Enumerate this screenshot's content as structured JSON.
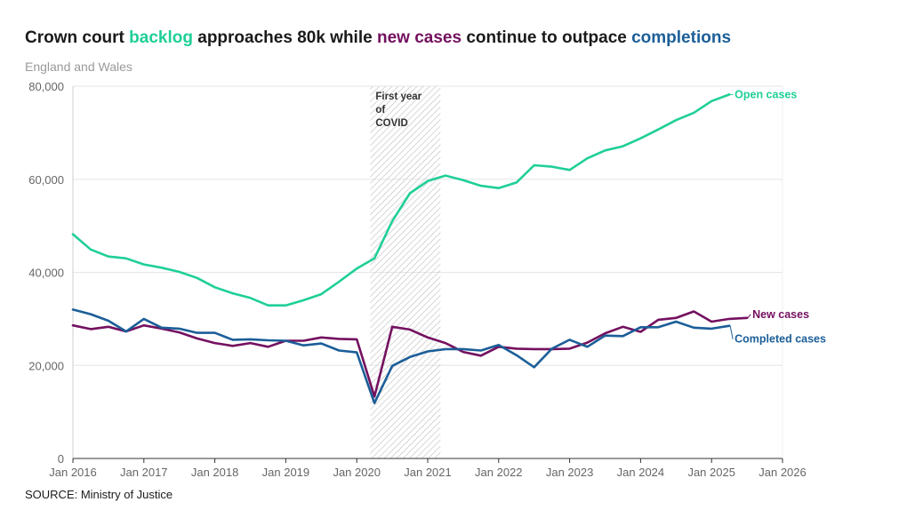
{
  "title": {
    "part1": "Crown court ",
    "hl1": "backlog",
    "part2": " approaches 80k while ",
    "hl2": "new cases",
    "part3": " continue to outpace ",
    "hl3": "completions"
  },
  "subtitle": "England and Wales",
  "source": "SOURCE: Ministry of Justice",
  "colors": {
    "open": "#1fcf98",
    "new": "#74105f",
    "completed": "#1b5e98",
    "grid": "#e6e6e6",
    "hatch": "#bdbdbd"
  },
  "chart_data": {
    "type": "line",
    "title": "Crown court backlog approaches 80k while new cases continue to outpace completions",
    "subtitle": "England and Wales",
    "xlabel": "",
    "ylabel": "",
    "xlim": [
      2016.0,
      2026.0
    ],
    "ylim": [
      0,
      80000
    ],
    "grid": true,
    "yticks": [
      {
        "value": 0,
        "label": "0"
      },
      {
        "value": 20000,
        "label": "20,000"
      },
      {
        "value": 40000,
        "label": "40,000"
      },
      {
        "value": 60000,
        "label": "60,000"
      },
      {
        "value": 80000,
        "label": "80,000"
      }
    ],
    "xticks": [
      {
        "value": 2016,
        "label": "Jan 2016"
      },
      {
        "value": 2017,
        "label": "Jan 2017"
      },
      {
        "value": 2018,
        "label": "Jan 2018"
      },
      {
        "value": 2019,
        "label": "Jan 2019"
      },
      {
        "value": 2020,
        "label": "Jan 2020"
      },
      {
        "value": 2021,
        "label": "Jan 2021"
      },
      {
        "value": 2022,
        "label": "Jan 2022"
      },
      {
        "value": 2023,
        "label": "Jan 2023"
      },
      {
        "value": 2024,
        "label": "Jan 2024"
      },
      {
        "value": 2025,
        "label": "Jan 2025"
      },
      {
        "value": 2026,
        "label": "Jan 2026"
      }
    ],
    "shaded_region": {
      "from": 2020.19,
      "to": 2021.18,
      "label_lines": [
        "First year",
        "of",
        "COVID"
      ]
    },
    "x": [
      2016.0,
      2016.25,
      2016.5,
      2016.75,
      2017.0,
      2017.25,
      2017.5,
      2017.75,
      2018.0,
      2018.25,
      2018.5,
      2018.75,
      2019.0,
      2019.25,
      2019.5,
      2019.75,
      2020.0,
      2020.25,
      2020.5,
      2020.75,
      2021.0,
      2021.25,
      2021.5,
      2021.75,
      2022.0,
      2022.25,
      2022.5,
      2022.75,
      2023.0,
      2023.25,
      2023.5,
      2023.75,
      2024.0,
      2024.25,
      2024.5,
      2024.75,
      2025.0,
      2025.25,
      2025.5
    ],
    "series": [
      {
        "name": "Open cases",
        "key": "open",
        "values": [
          48200,
          44900,
          43400,
          43000,
          41700,
          41000,
          40100,
          38800,
          36800,
          35500,
          34500,
          32900,
          32900,
          34000,
          35300,
          38000,
          40800,
          43000,
          51000,
          57000,
          59600,
          60800,
          59800,
          58600,
          58100,
          59300,
          63000,
          62700,
          62000,
          64500,
          66200,
          67100,
          68800,
          70700,
          72700,
          74300,
          76800,
          78200,
          null
        ]
      },
      {
        "name": "New cases",
        "key": "new",
        "values": [
          28600,
          27800,
          28300,
          27300,
          28600,
          27900,
          27100,
          25800,
          24800,
          24200,
          24800,
          24000,
          25300,
          25300,
          26000,
          25700,
          25600,
          13300,
          28300,
          27700,
          26000,
          24800,
          22900,
          22100,
          24000,
          23600,
          23500,
          23500,
          null,
          null,
          null,
          null,
          null,
          null,
          null,
          null,
          null,
          null,
          null
        ]
      },
      {
        "name": "Completed cases",
        "key": "completed",
        "values": [
          32000,
          31000,
          29600,
          27300,
          30000,
          28100,
          27900,
          27000,
          27000,
          25500,
          25600,
          25400,
          25300,
          24300,
          24700,
          23200,
          22800,
          11900,
          19900,
          21800,
          23000,
          23500,
          23500,
          23200,
          24400,
          22200,
          19600,
          23600,
          25500,
          24000,
          26400,
          26300,
          28200,
          28200,
          29400,
          28100,
          27900,
          28500,
          null
        ]
      }
    ],
    "series_tail": {
      "new_x": [
        2023.0,
        2023.25,
        2023.5,
        2023.75,
        2024.0,
        2024.25,
        2024.5,
        2024.75,
        2025.0,
        2025.25,
        2025.5
      ],
      "new_values": [
        23600,
        24900,
        26900,
        28300,
        27200,
        29800,
        30200,
        31600,
        29400,
        30000,
        30200
      ]
    },
    "end_labels": [
      {
        "series": "open",
        "text": "Open cases"
      },
      {
        "series": "new",
        "text": "New cases"
      },
      {
        "series": "completed",
        "text": "Completed cases"
      }
    ]
  }
}
